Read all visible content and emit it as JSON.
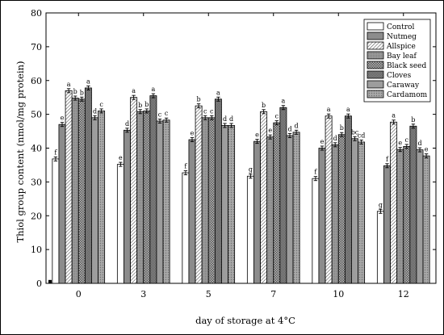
{
  "chart_data": {
    "type": "bar",
    "title": "",
    "xlabel": "day of storage at 4°C",
    "ylabel": "Thiol group content (nmol/mg protein)",
    "ylim": [
      0,
      80
    ],
    "yticks": [
      0,
      10,
      20,
      30,
      40,
      50,
      60,
      70,
      80
    ],
    "grid": false,
    "legend_position": "top-right",
    "categories": [
      "0",
      "3",
      "5",
      "7",
      "10",
      "12"
    ],
    "series": [
      {
        "name": "Control",
        "pattern": "white",
        "values": [
          36.8,
          35.2,
          32.7,
          31.7,
          31.0,
          21.3
        ],
        "errors": [
          0.6,
          0.6,
          0.6,
          0.6,
          0.6,
          0.6
        ],
        "letters": [
          "f",
          "e",
          "f",
          "g",
          "f",
          "g"
        ]
      },
      {
        "name": "Nutmeg",
        "pattern": "solid-gray",
        "values": [
          47.0,
          45.3,
          42.5,
          42.0,
          40.0,
          34.8
        ],
        "errors": [
          0.6,
          0.6,
          0.6,
          0.6,
          0.6,
          0.6
        ],
        "letters": [
          "e",
          "d",
          "e",
          "e",
          "e",
          "f"
        ]
      },
      {
        "name": "Allspice",
        "pattern": "hatch",
        "values": [
          57.0,
          55.0,
          52.5,
          50.8,
          49.5,
          47.7
        ],
        "errors": [
          0.6,
          0.6,
          0.6,
          0.6,
          0.6,
          0.6
        ],
        "letters": [
          "a",
          "a",
          "b",
          "b",
          "a",
          "a"
        ]
      },
      {
        "name": "Bay leaf",
        "pattern": "stipple-gray",
        "values": [
          54.8,
          50.8,
          49.0,
          43.3,
          41.0,
          39.6
        ],
        "errors": [
          0.6,
          0.6,
          0.6,
          0.6,
          0.6,
          0.6
        ],
        "letters": [
          "b",
          "b",
          "c",
          "e",
          "d",
          "e"
        ]
      },
      {
        "name": "Black seed",
        "pattern": "checker",
        "values": [
          54.5,
          51.0,
          49.0,
          47.5,
          44.0,
          40.5
        ],
        "errors": [
          0.6,
          0.6,
          0.6,
          0.6,
          0.6,
          0.6
        ],
        "letters": [
          "b",
          "b",
          "c",
          "c",
          "b",
          "c"
        ]
      },
      {
        "name": "Cloves",
        "pattern": "dark-stipple",
        "values": [
          57.8,
          55.5,
          54.5,
          52.0,
          49.5,
          46.5
        ],
        "errors": [
          0.6,
          0.6,
          0.6,
          0.6,
          0.6,
          0.6
        ],
        "letters": [
          "a",
          "a",
          "a",
          "a",
          "a",
          "b"
        ]
      },
      {
        "name": "Caraway",
        "pattern": "medium-gray",
        "values": [
          49.0,
          48.0,
          46.7,
          43.7,
          42.8,
          39.5
        ],
        "errors": [
          0.6,
          0.6,
          0.6,
          0.6,
          0.6,
          0.6
        ],
        "letters": [
          "d",
          "c",
          "d",
          "d",
          "bc",
          "d"
        ]
      },
      {
        "name": "Cardamom",
        "pattern": "light-dots",
        "values": [
          51.0,
          48.3,
          46.7,
          44.7,
          41.8,
          37.7
        ],
        "errors": [
          0.6,
          0.6,
          0.6,
          0.6,
          0.6,
          0.6
        ],
        "letters": [
          "c",
          "c",
          "d",
          "d",
          "cd",
          "e"
        ]
      }
    ],
    "extra_marks": [
      {
        "category": "0",
        "value": 1.0,
        "note": "small filled mark at left baseline"
      }
    ]
  }
}
